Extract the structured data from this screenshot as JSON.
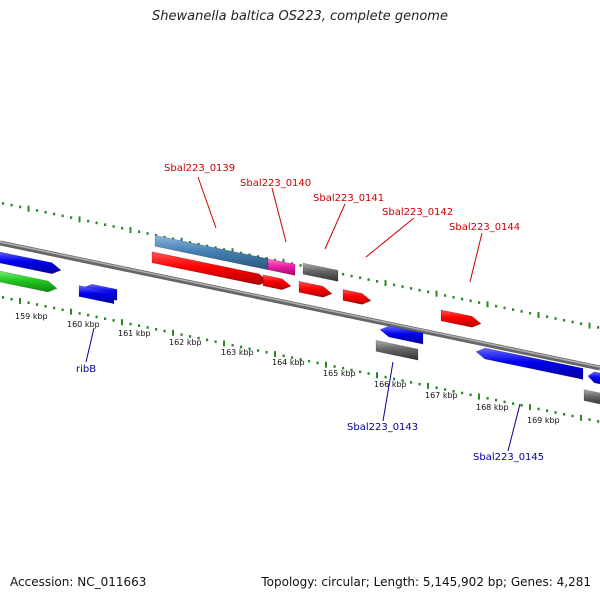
{
  "title": "Shewanella baltica OS223, complete genome",
  "footer": {
    "accession": "Accession: NC_011663",
    "summary": "Topology: circular; Length: 5,145,902 bp; Genes: 4,281"
  },
  "scale": {
    "ticks": [
      "159 kbp",
      "160 kbp",
      "161 kbp",
      "162 kbp",
      "163 kbp",
      "164 kbp",
      "165 kbp",
      "166 kbp",
      "167 kbp",
      "168 kbp",
      "169 kbp"
    ]
  },
  "colors": {
    "backbone": "#808080",
    "dots": "#2a8a2a",
    "red_gene": "#ff0000",
    "blue_gene": "#0000ee",
    "grey_gene": "#606060",
    "steel_gene": "#4682b4",
    "magenta_gene": "#ee1fa8",
    "green_gene": "#22cc22",
    "label_red": "#cc0000",
    "label_blue": "#000099"
  },
  "genes_top": [
    {
      "label": "Sbal223_0139"
    },
    {
      "label": "Sbal223_0140"
    },
    {
      "label": "Sbal223_0141"
    },
    {
      "label": "Sbal223_0142"
    },
    {
      "label": "Sbal223_0144"
    }
  ],
  "genes_bottom": [
    {
      "label": "ribB"
    },
    {
      "label": "Sbal223_0143"
    },
    {
      "label": "Sbal223_0145"
    }
  ]
}
